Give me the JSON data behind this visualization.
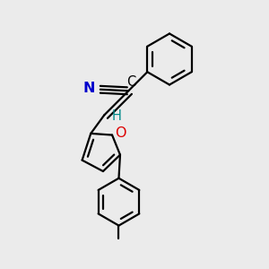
{
  "background_color": "#ebebeb",
  "bond_color": "#000000",
  "bond_width": 1.6,
  "figsize": [
    3.0,
    3.0
  ],
  "dpi": 100,
  "xlim": [
    0.0,
    1.0
  ],
  "ylim": [
    0.0,
    1.0
  ]
}
